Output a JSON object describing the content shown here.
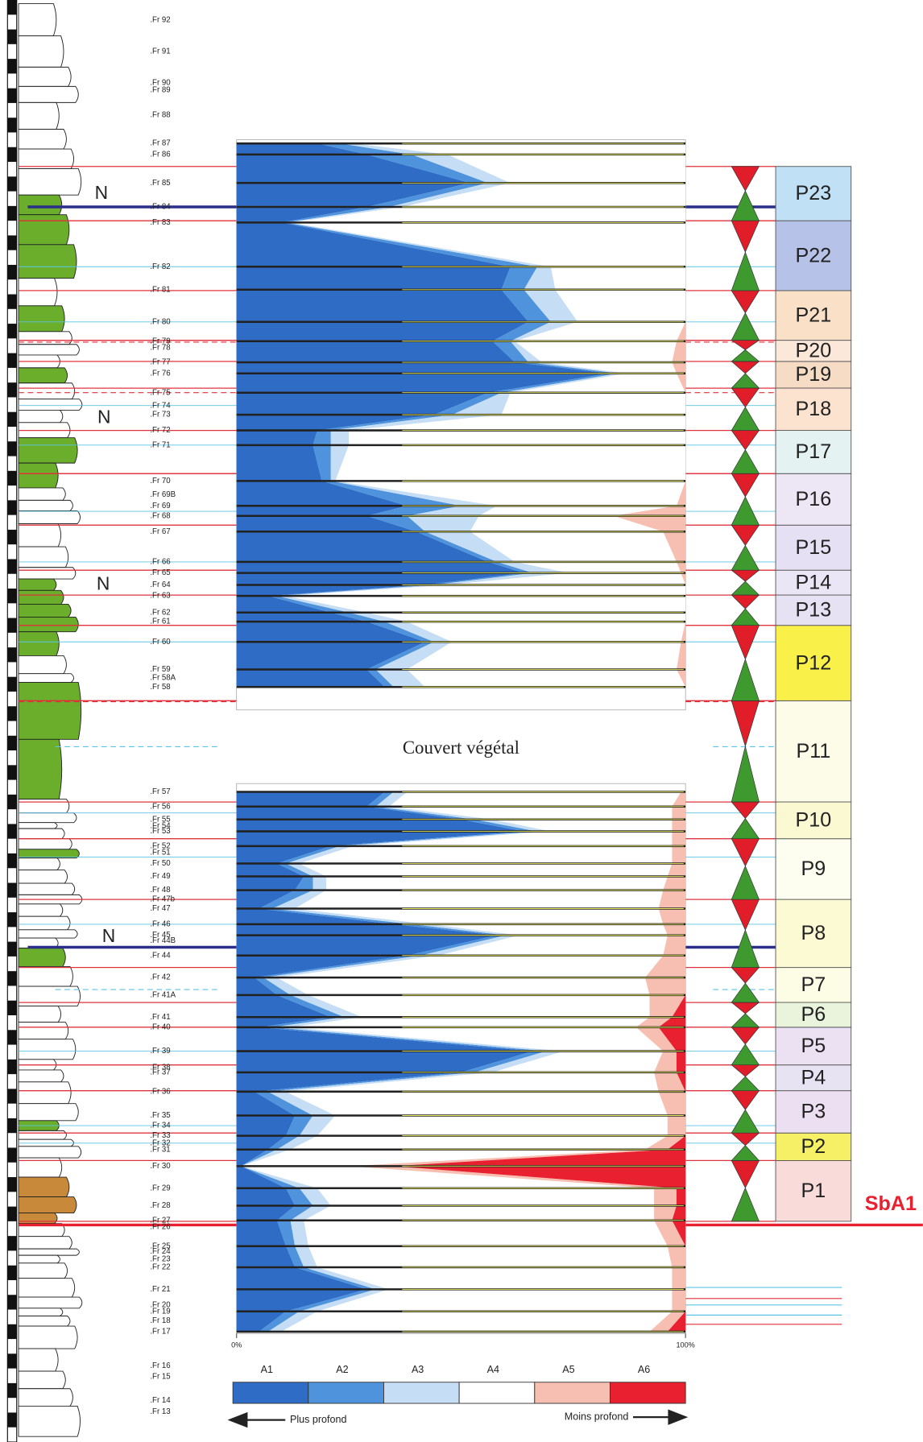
{
  "chart_data": {
    "type": "area",
    "categories": [
      ".Fr 92",
      ".Fr 91",
      ".Fr 90",
      ".Fr 89",
      ".Fr 88",
      ".Fr 87",
      ".Fr 86",
      ".Fr 85",
      ".Fr 84",
      ".Fr 83",
      ".Fr 82",
      ".Fr 81",
      ".Fr 80",
      ".Fr 79",
      ".Fr 78",
      ".Fr 77",
      ".Fr 76",
      ".Fr 75",
      ".Fr 74",
      ".Fr 73",
      ".Fr 72",
      ".Fr 71",
      ".Fr 70",
      ".Fr 69B",
      ".Fr 69",
      ".Fr 68",
      ".Fr 67",
      ".Fr 66",
      ".Fr 65",
      ".Fr 64",
      ".Fr 63",
      ".Fr 62",
      ".Fr 61",
      ".Fr 60",
      ".Fr 59",
      ".Fr 58A",
      ".Fr 58",
      ".Fr 57",
      ".Fr 56",
      ".Fr 55",
      ".Fr 54",
      ".Fr 53",
      ".Fr 52",
      ".Fr 51",
      ".Fr 50",
      ".Fr 49",
      ".Fr 48",
      ".Fr 47b",
      ".Fr 47",
      ".Fr 46",
      ".Fr 45",
      ".Fr 44B",
      ".Fr 44",
      ".Fr 42",
      ".Fr 41A",
      ".Fr 41",
      ".Fr 40",
      ".Fr 39",
      ".Fr 38",
      ".Fr 37",
      ".Fr 36",
      ".Fr 35",
      ".Fr 34",
      ".Fr 33",
      ".Fr 32",
      ".Fr 31",
      ".Fr 30",
      ".Fr 29",
      ".Fr 28",
      ".Fr 27",
      ".Fr 26",
      ".Fr 25",
      ".Fr 24",
      ".Fr 23",
      ".Fr 22",
      ".Fr 21",
      ".Fr 20",
      ".Fr 19",
      ".Fr 18",
      ".Fr 17",
      ".Fr 16",
      ".Fr 15",
      ".Fr 14",
      ".Fr 13"
    ],
    "series": [
      {
        "name": "A1",
        "color": "#2f6cc6",
        "values": [
          null,
          null,
          null,
          null,
          null,
          18,
          29,
          52,
          29,
          10,
          61,
          59,
          65,
          57,
          null,
          62,
          83,
          56,
          null,
          44,
          18,
          17,
          19,
          null,
          38,
          29,
          40,
          56,
          64,
          42,
          7,
          21,
          29,
          42,
          29,
          null,
          33,
          33,
          29,
          50,
          null,
          64,
          21,
          null,
          9,
          15,
          13,
          null,
          5,
          35,
          58,
          null,
          38,
          4,
          9,
          21,
          5,
          66,
          null,
          50,
          4,
          13,
          null,
          11,
          null,
          7,
          1,
          11,
          13,
          9,
          null,
          11,
          null,
          null,
          13,
          29,
          null,
          11,
          null,
          5,
          null,
          null,
          null,
          null
        ]
      },
      {
        "name": "A2",
        "color": "#4f93dc",
        "values": [
          null,
          null,
          null,
          null,
          null,
          5,
          10,
          4,
          5,
          1,
          6,
          5,
          5,
          4,
          null,
          3,
          2,
          3,
          null,
          4,
          3,
          4,
          2,
          null,
          12,
          9,
          2,
          2,
          2,
          2,
          2,
          4,
          4,
          2,
          2,
          null,
          2,
          2,
          2,
          3,
          null,
          3,
          2,
          null,
          2,
          2,
          4,
          null,
          3,
          4,
          2,
          null,
          3,
          2,
          3,
          3,
          3,
          3,
          null,
          3,
          3,
          4,
          null,
          3,
          null,
          2,
          0,
          3,
          4,
          3,
          null,
          2,
          null,
          null,
          2,
          2,
          null,
          3,
          null,
          2,
          null,
          null,
          null,
          null
        ]
      },
      {
        "name": "A3",
        "color": "#c6def5",
        "values": [
          null,
          null,
          null,
          null,
          null,
          3,
          8,
          5,
          3,
          1,
          3,
          7,
          6,
          1,
          null,
          3,
          2,
          2,
          null,
          11,
          4,
          4,
          1,
          null,
          8,
          16,
          10,
          4,
          8,
          3,
          2,
          4,
          5,
          4,
          7,
          null,
          7,
          3,
          3,
          4,
          null,
          3,
          3,
          null,
          3,
          3,
          3,
          null,
          5,
          4,
          3,
          null,
          4,
          3,
          4,
          4,
          4,
          4,
          null,
          4,
          4,
          5,
          null,
          4,
          null,
          3,
          0,
          4,
          4,
          3,
          null,
          3,
          null,
          null,
          3,
          3,
          null,
          4,
          null,
          3,
          null,
          null,
          null,
          null
        ]
      },
      {
        "name": "A4",
        "color": "#ffffff",
        "values": [
          null,
          null,
          null,
          null,
          null,
          74,
          53,
          39,
          63,
          88,
          30,
          29,
          24,
          36,
          null,
          29,
          11,
          39,
          null,
          41,
          75,
          75,
          78,
          null,
          40,
          30,
          43,
          36,
          25,
          53,
          89,
          71,
          62,
          51,
          60,
          null,
          58,
          61,
          63,
          40,
          null,
          27,
          71,
          null,
          83,
          76,
          75,
          null,
          81,
          52,
          33,
          null,
          50,
          82,
          76,
          64,
          77,
          22,
          null,
          36,
          83,
          74,
          null,
          78,
          null,
          79,
          24,
          75,
          72,
          78,
          null,
          80,
          null,
          null,
          79,
          63,
          null,
          79,
          null,
          82,
          null,
          null,
          null,
          null
        ]
      },
      {
        "name": "A5",
        "color": "#f6bfb2",
        "values": [
          null,
          null,
          null,
          null,
          null,
          0,
          0,
          0,
          0,
          0,
          0,
          0,
          0,
          2,
          null,
          3,
          2,
          0,
          null,
          0,
          0,
          0,
          0,
          null,
          2,
          16,
          5,
          2,
          1,
          0,
          0,
          0,
          0,
          1,
          2,
          null,
          0,
          1,
          3,
          3,
          null,
          3,
          3,
          null,
          3,
          4,
          5,
          null,
          6,
          5,
          4,
          null,
          5,
          9,
          8,
          5,
          5,
          3,
          null,
          5,
          6,
          4,
          null,
          4,
          null,
          5,
          10,
          5,
          5,
          4,
          null,
          4,
          null,
          null,
          3,
          3,
          null,
          3,
          null,
          4,
          null,
          null,
          null,
          null
        ]
      },
      {
        "name": "A6",
        "color": "#e8202f",
        "values": [
          null,
          null,
          null,
          null,
          null,
          0,
          0,
          0,
          0,
          0,
          0,
          0,
          0,
          0,
          null,
          0,
          0,
          0,
          null,
          0,
          0,
          0,
          0,
          null,
          0,
          0,
          0,
          0,
          0,
          0,
          0,
          0,
          0,
          0,
          0,
          null,
          0,
          0,
          0,
          0,
          null,
          0,
          0,
          null,
          0,
          0,
          0,
          null,
          0,
          0,
          0,
          null,
          0,
          0,
          0,
          3,
          6,
          2,
          null,
          2,
          0,
          0,
          null,
          0,
          null,
          4,
          65,
          2,
          2,
          3,
          null,
          0,
          null,
          null,
          0,
          0,
          null,
          0,
          null,
          4,
          null,
          null,
          null,
          null
        ]
      }
    ],
    "xlim": [
      0,
      100
    ],
    "xticks": [
      {
        "value": 0,
        "label": "0%"
      },
      {
        "value": 100,
        "label": "100%"
      }
    ]
  },
  "sequences": [
    "P1",
    "P2",
    "P3",
    "P4",
    "P5",
    "P6",
    "P7",
    "P8",
    "P9",
    "P10",
    "P11",
    "P12",
    "P13",
    "P14",
    "P15",
    "P16",
    "P17",
    "P18",
    "P19",
    "P20",
    "P21",
    "P22",
    "P23"
  ],
  "annotations": {
    "gap": "Couvert végétal",
    "deeper": "Plus profond",
    "shallower": "Moins profond",
    "boundary": "SbA1",
    "north": [
      "N",
      "N",
      "N",
      "N"
    ]
  }
}
